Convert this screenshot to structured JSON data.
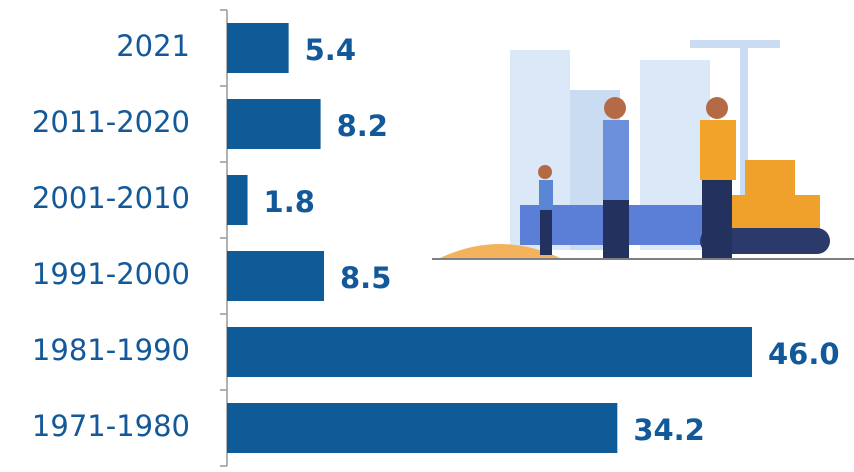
{
  "chart_data": {
    "type": "bar",
    "orientation": "horizontal",
    "categories": [
      "2021",
      "2011-2020",
      "2001-2010",
      "1991-2000",
      "1981-1990",
      "1971-1980"
    ],
    "values": [
      5.4,
      8.2,
      1.8,
      8.5,
      46.0,
      34.2
    ],
    "value_labels": [
      "5.4",
      "8.2",
      "1.8",
      "8.5",
      "46.0",
      "34.2"
    ],
    "color": "#0f5b97"
  }
}
